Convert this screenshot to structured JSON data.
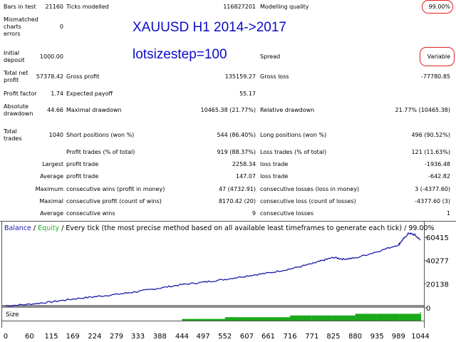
{
  "stats": {
    "bars_in_test": {
      "label": "Bars in test",
      "value": "21160"
    },
    "ticks_modelled": {
      "label": "Ticks modelled",
      "value": "116827201"
    },
    "modelling_quality": {
      "label": "Modelling quality",
      "value": "99.00%"
    },
    "mismatched_errors": {
      "label": "Mismatched charts errors",
      "value": "0"
    },
    "initial_deposit": {
      "label": "Initial deposit",
      "value": "1000.00"
    },
    "spread": {
      "label": "Spread",
      "value": "Variable"
    },
    "total_net_profit": {
      "label": "Total net profit",
      "value": "57378.42"
    },
    "gross_profit": {
      "label": "Gross profit",
      "value": "135159.27"
    },
    "gross_loss": {
      "label": "Gross loss",
      "value": "-77780.85"
    },
    "profit_factor": {
      "label": "Profit factor",
      "value": "1.74"
    },
    "expected_payoff": {
      "label": "Expected payoff",
      "value": "55.17"
    },
    "absolute_drawdown": {
      "label": "Absolute drawdown",
      "value": "44.66"
    },
    "maximal_drawdown": {
      "label": "Maximal drawdown",
      "value": "10465.38 (21.77%)"
    },
    "relative_drawdown": {
      "label": "Relative drawdown",
      "value": "21.77% (10465.38)"
    },
    "total_trades": {
      "label": "Total trades",
      "value": "1040"
    },
    "short_positions": {
      "label": "Short positions (won %)",
      "value": "544 (86.40%)"
    },
    "long_positions": {
      "label": "Long positions (won %)",
      "value": "496 (90.52%)"
    },
    "profit_trades": {
      "label": "Profit trades (% of total)",
      "value": "919 (88.37%)"
    },
    "loss_trades": {
      "label": "Loss trades (% of total)",
      "value": "121 (11.63%)"
    },
    "largest": {
      "label": "Largest",
      "profit_label": "profit trade",
      "profit_value": "2258.34",
      "loss_label": "loss trade",
      "loss_value": "-1936.48"
    },
    "average": {
      "label": "Average",
      "profit_label": "profit trade",
      "profit_value": "147.07",
      "loss_label": "loss trade",
      "loss_value": "-642.82"
    },
    "maximum": {
      "label": "Maximum",
      "wins_label": "consecutive wins (profit in money)",
      "wins_value": "47 (4732.91)",
      "losses_label": "consecutive losses (loss in money)",
      "losses_value": "3 (-4377.60)"
    },
    "maximal": {
      "label": "Maximal",
      "profit_label": "consecutive profit (count of wins)",
      "profit_value": "8170.42 (20)",
      "loss_label": "consecutive loss (count of losses)",
      "loss_value": "-4377.60 (3)"
    },
    "average_consec": {
      "label": "Average",
      "wins_label": "consecutive wins",
      "wins_value": "9",
      "losses_label": "consecutive losses",
      "losses_value": "1"
    }
  },
  "overlay": {
    "title": "XAUUSD H1 2014->2017",
    "subtitle": "lotsizestep=100"
  },
  "colors": {
    "balance": "#1a1aa8",
    "equity": "#22b022",
    "size_bars": "#1aa81a",
    "highlight": "#e02020",
    "overlay_text": "#0a0ac8"
  },
  "chart": {
    "legend_balance": "Balance",
    "legend_sep1": " / ",
    "legend_equity": "Equity",
    "legend_rest": " / Every tick (the most precise method based on all available least timeframes to generate each tick) / 99.00%",
    "size_label": "Size"
  },
  "chart_data": {
    "type": "line",
    "ylim": [
      0,
      66000
    ],
    "yticks": [
      60415,
      40277,
      20138,
      0
    ],
    "xticks": [
      0,
      60,
      115,
      169,
      224,
      279,
      333,
      388,
      444,
      497,
      552,
      607,
      661,
      716,
      771,
      825,
      880,
      935,
      989,
      1044
    ],
    "xlim": [
      0,
      1044
    ],
    "series": [
      {
        "name": "Balance",
        "x": [
          0,
          60,
          115,
          169,
          224,
          279,
          333,
          388,
          444,
          497,
          552,
          607,
          661,
          716,
          771,
          800,
          825,
          850,
          880,
          935,
          989,
          1000,
          1015,
          1030,
          1044
        ],
        "values": [
          1000,
          2500,
          4500,
          7000,
          9000,
          11000,
          13500,
          16500,
          19500,
          21500,
          24000,
          27000,
          29500,
          33000,
          37500,
          40500,
          43000,
          41500,
          42500,
          48000,
          54000,
          58500,
          64000,
          62500,
          58000
        ]
      }
    ],
    "size_series": {
      "x": [
        0,
        60,
        115,
        169,
        224,
        279,
        333,
        388,
        444,
        497,
        552,
        607,
        661,
        716,
        771,
        825,
        880,
        935,
        989,
        1044
      ],
      "values": [
        0,
        0,
        0,
        0,
        0,
        0,
        0,
        0,
        1,
        1,
        2,
        2,
        2,
        3,
        3,
        3,
        4,
        4,
        4,
        5
      ]
    }
  }
}
